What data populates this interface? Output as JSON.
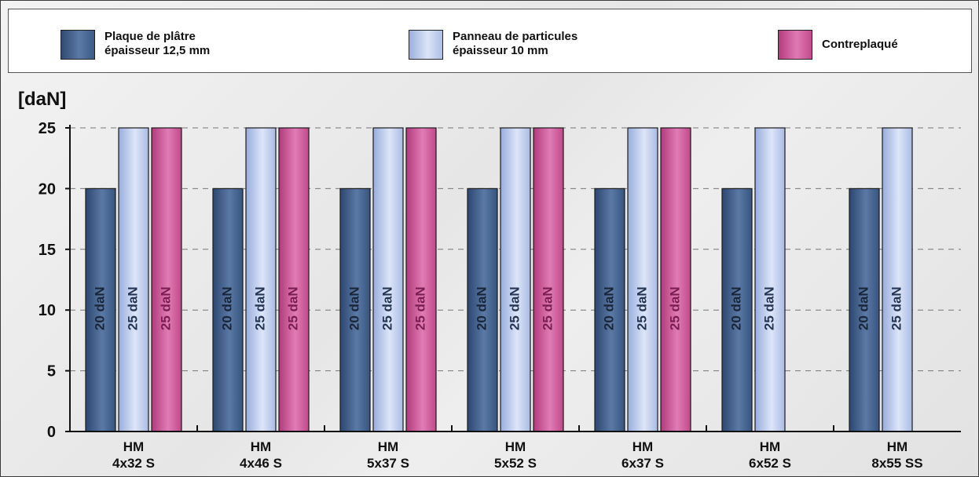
{
  "legend": [
    {
      "line1": "Plaque de plâtre",
      "line2": "épaisseur 12,5 mm"
    },
    {
      "line1": "Panneau de particules",
      "line2": "épaisseur 10 mm"
    },
    {
      "line1": "Contreplaqué",
      "line2": ""
    }
  ],
  "chart_data": {
    "type": "bar",
    "ylabel": "[daN]",
    "ylim": [
      0,
      25
    ],
    "yticks": [
      0,
      5,
      10,
      15,
      20,
      25
    ],
    "grid": "dashed horizontal",
    "legend_position": "top",
    "categories": [
      {
        "line1": "HM",
        "line2": "4x32 S"
      },
      {
        "line1": "HM",
        "line2": "4x46 S"
      },
      {
        "line1": "HM",
        "line2": "5x37 S"
      },
      {
        "line1": "HM",
        "line2": "5x52 S"
      },
      {
        "line1": "HM",
        "line2": "6x37 S"
      },
      {
        "line1": "HM",
        "line2": "6x52 S"
      },
      {
        "line1": "HM",
        "line2": "8x55 SS"
      }
    ],
    "series": [
      {
        "name": "Plaque de plâtre épaisseur 12,5 mm",
        "color": "#3b5a85",
        "values": [
          20,
          20,
          20,
          20,
          20,
          20,
          20
        ],
        "labels": [
          "20 daN",
          "20 daN",
          "20 daN",
          "20 daN",
          "20 daN",
          "20 daN",
          "20 daN"
        ]
      },
      {
        "name": "Panneau de particules épaisseur 10 mm",
        "color": "#b9c8ec",
        "values": [
          25,
          25,
          25,
          25,
          25,
          25,
          25
        ],
        "labels": [
          "25 daN",
          "25 daN",
          "25 daN",
          "25 daN",
          "25 daN",
          "25 daN",
          "25 daN"
        ]
      },
      {
        "name": "Contreplaqué",
        "color": "#c94b91",
        "values": [
          25,
          25,
          25,
          25,
          25,
          0,
          0
        ],
        "labels": [
          "25 daN",
          "25 daN",
          "25 daN",
          "25 daN",
          "25 daN",
          "",
          ""
        ]
      }
    ]
  }
}
